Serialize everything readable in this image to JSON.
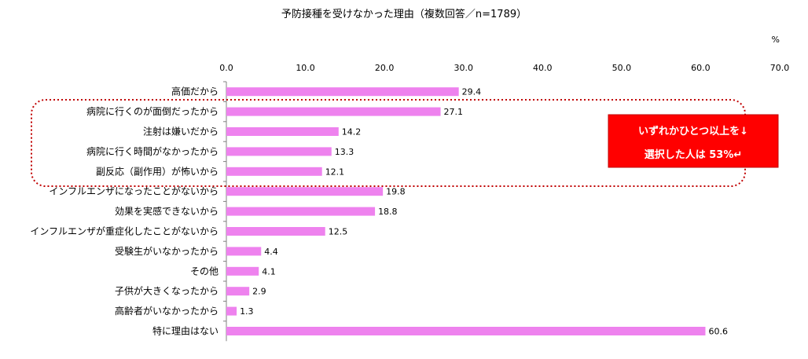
{
  "chart_data": {
    "type": "bar",
    "orientation": "horizontal",
    "title": "予防接種を受けなかった理由（複数回答／n=1789）",
    "unit": "%",
    "xlim": [
      0,
      70
    ],
    "ticks": [
      "0.0",
      "10.0",
      "20.0",
      "30.0",
      "40.0",
      "50.0",
      "60.0",
      "70.0"
    ],
    "categories": [
      "高価だから",
      "病院に行くのが面倒だったから",
      "注射は嫌いだから",
      "病院に行く時間がなかったから",
      "副反応（副作用）が怖いから",
      "インフルエンザになったことがないから",
      "効果を実感できないから",
      "インフルエンザが重症化したことがないから",
      "受験生がいなかったから",
      "その他",
      "子供が大きくなったから",
      "高齢者がいなかったから",
      "特に理由はない"
    ],
    "values": [
      29.4,
      27.1,
      14.2,
      13.3,
      12.1,
      19.8,
      18.8,
      12.5,
      4.4,
      4.1,
      2.9,
      1.3,
      60.6
    ],
    "value_labels": [
      "29.4",
      "27.1",
      "14.2",
      "13.3",
      "12.1",
      "19.8",
      "18.8",
      "12.5",
      "4.4",
      "4.1",
      "2.9",
      "1.3",
      "60.6"
    ],
    "bar_color": "#ee82ee",
    "annotation": {
      "line1": "いずれかひとつ以上を↓",
      "line2": "選択した人は 53%↵",
      "background": "#ff0000",
      "text_color": "#ffffff",
      "border_color": "#c00000"
    }
  }
}
